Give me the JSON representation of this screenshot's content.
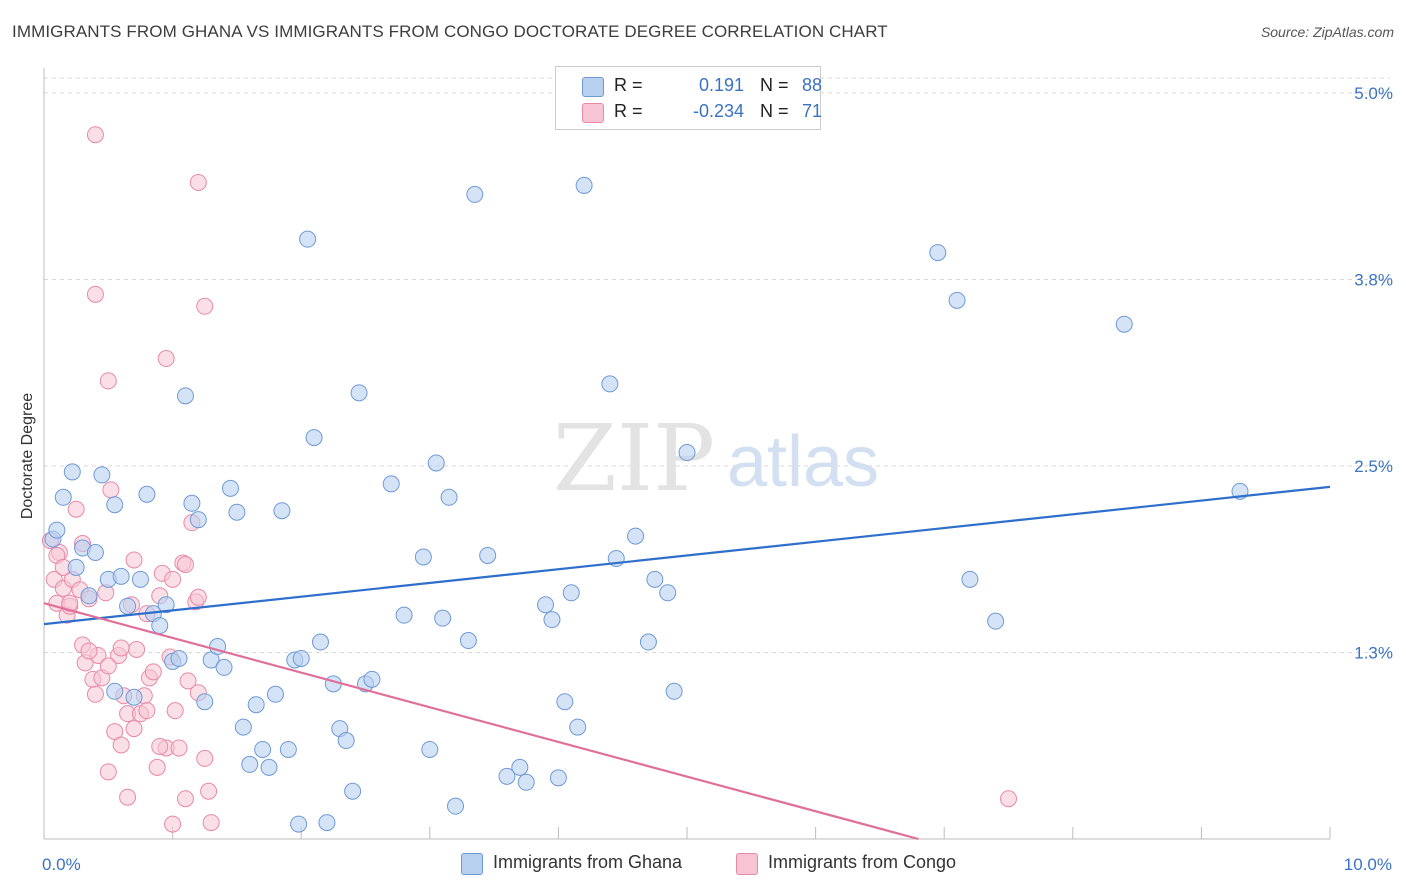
{
  "title": "IMMIGRANTS FROM GHANA VS IMMIGRANTS FROM CONGO DOCTORATE DEGREE CORRELATION CHART",
  "source": "Source: ZipAtlas.com",
  "watermark": {
    "zip": "ZIP",
    "atlas": "atlas"
  },
  "legend": {
    "ghana": {
      "r_label": "R =",
      "r_value": "0.191",
      "n_label": "N =",
      "n_value": "88"
    },
    "congo": {
      "r_label": "R =",
      "r_value": "-0.234",
      "n_label": "N =",
      "n_value": "71"
    }
  },
  "bottom_legend": {
    "ghana": "Immigrants from Ghana",
    "congo": "Immigrants from Congo"
  },
  "colors": {
    "ghana_fill": "#b8d0f0",
    "ghana_stroke": "#6f9ad6",
    "ghana_line": "#2f6fcc",
    "congo_fill": "#f7c4d4",
    "congo_stroke": "#e889a8",
    "congo_line": "#e0709a",
    "tick_text": "#3b73c4",
    "grid": "#d9d9d9"
  },
  "chart_data": {
    "type": "scatter",
    "title": "IMMIGRANTS FROM GHANA VS IMMIGRANTS FROM CONGO DOCTORATE DEGREE CORRELATION CHART",
    "xlabel": "",
    "ylabel": "Doctorate Degree",
    "xlim": [
      0,
      10
    ],
    "ylim": [
      0,
      5.1
    ],
    "x_tick_labels": [
      {
        "value": 0,
        "label": "0.0%"
      },
      {
        "value": 10,
        "label": "10.0%"
      }
    ],
    "y_tick_labels": [
      {
        "value": 1.25,
        "label": "1.3%"
      },
      {
        "value": 2.5,
        "label": "2.5%"
      },
      {
        "value": 3.75,
        "label": "3.8%"
      },
      {
        "value": 5.0,
        "label": "5.0%"
      }
    ],
    "series": [
      {
        "name": "Immigrants from Ghana",
        "trend": {
          "x0": 0,
          "y0": 1.44,
          "x1": 10,
          "y1": 2.36
        },
        "points": [
          [
            0.07,
            2.01
          ],
          [
            0.1,
            2.07
          ],
          [
            0.15,
            2.29
          ],
          [
            0.22,
            2.46
          ],
          [
            0.25,
            1.82
          ],
          [
            0.3,
            1.95
          ],
          [
            0.35,
            1.63
          ],
          [
            0.4,
            1.92
          ],
          [
            0.45,
            2.44
          ],
          [
            0.5,
            1.74
          ],
          [
            0.55,
            2.24
          ],
          [
            0.6,
            1.76
          ],
          [
            0.65,
            1.56
          ],
          [
            0.7,
            0.95
          ],
          [
            0.75,
            1.74
          ],
          [
            0.8,
            2.31
          ],
          [
            0.85,
            1.51
          ],
          [
            0.9,
            1.43
          ],
          [
            0.95,
            1.57
          ],
          [
            1.0,
            1.19
          ],
          [
            1.05,
            1.21
          ],
          [
            1.1,
            2.97
          ],
          [
            1.15,
            2.25
          ],
          [
            1.2,
            2.14
          ],
          [
            1.25,
            0.92
          ],
          [
            1.3,
            1.2
          ],
          [
            1.35,
            1.29
          ],
          [
            1.4,
            1.15
          ],
          [
            1.45,
            2.35
          ],
          [
            1.5,
            2.19
          ],
          [
            1.55,
            0.75
          ],
          [
            1.6,
            0.5
          ],
          [
            1.65,
            0.9
          ],
          [
            1.7,
            0.6
          ],
          [
            1.75,
            0.48
          ],
          [
            1.8,
            0.97
          ],
          [
            1.85,
            2.2
          ],
          [
            1.9,
            0.6
          ],
          [
            1.95,
            1.2
          ],
          [
            1.98,
            0.1
          ],
          [
            2.0,
            1.21
          ],
          [
            2.05,
            4.02
          ],
          [
            2.1,
            2.69
          ],
          [
            2.15,
            1.32
          ],
          [
            2.2,
            0.11
          ],
          [
            2.25,
            1.04
          ],
          [
            2.3,
            0.74
          ],
          [
            2.35,
            0.66
          ],
          [
            2.4,
            0.32
          ],
          [
            2.45,
            2.99
          ],
          [
            2.5,
            1.04
          ],
          [
            2.55,
            1.07
          ],
          [
            2.7,
            2.38
          ],
          [
            2.8,
            1.5
          ],
          [
            2.95,
            1.89
          ],
          [
            3.0,
            0.6
          ],
          [
            3.05,
            2.52
          ],
          [
            3.1,
            1.48
          ],
          [
            3.15,
            2.29
          ],
          [
            3.2,
            0.22
          ],
          [
            3.3,
            1.33
          ],
          [
            3.35,
            4.32
          ],
          [
            3.45,
            1.9
          ],
          [
            3.6,
            0.42
          ],
          [
            3.7,
            0.48
          ],
          [
            3.75,
            0.38
          ],
          [
            3.9,
            1.57
          ],
          [
            3.95,
            1.47
          ],
          [
            4.0,
            0.41
          ],
          [
            4.05,
            0.92
          ],
          [
            4.1,
            1.65
          ],
          [
            4.15,
            0.75
          ],
          [
            4.2,
            4.38
          ],
          [
            4.4,
            3.05
          ],
          [
            4.45,
            1.88
          ],
          [
            4.6,
            2.03
          ],
          [
            4.7,
            1.32
          ],
          [
            4.75,
            1.74
          ],
          [
            4.85,
            1.65
          ],
          [
            4.9,
            0.99
          ],
          [
            5.0,
            2.59
          ],
          [
            6.95,
            3.93
          ],
          [
            7.1,
            3.61
          ],
          [
            7.2,
            1.74
          ],
          [
            7.4,
            1.46
          ],
          [
            8.4,
            3.45
          ],
          [
            9.3,
            2.33
          ],
          [
            0.55,
            0.99
          ]
        ]
      },
      {
        "name": "Immigrants from Congo",
        "trend": {
          "x0": 0,
          "y0": 1.58,
          "x1": 6.8,
          "y1": 0.0
        },
        "points": [
          [
            0.05,
            2.0
          ],
          [
            0.08,
            1.74
          ],
          [
            0.1,
            1.58
          ],
          [
            0.12,
            1.92
          ],
          [
            0.15,
            1.68
          ],
          [
            0.18,
            1.5
          ],
          [
            0.2,
            1.56
          ],
          [
            0.22,
            1.74
          ],
          [
            0.25,
            2.21
          ],
          [
            0.28,
            1.67
          ],
          [
            0.3,
            1.3
          ],
          [
            0.32,
            1.18
          ],
          [
            0.35,
            1.61
          ],
          [
            0.38,
            1.07
          ],
          [
            0.4,
            0.97
          ],
          [
            0.42,
            1.23
          ],
          [
            0.45,
            1.08
          ],
          [
            0.48,
            1.65
          ],
          [
            0.5,
            0.45
          ],
          [
            0.52,
            2.34
          ],
          [
            0.55,
            0.72
          ],
          [
            0.58,
            1.23
          ],
          [
            0.6,
            0.63
          ],
          [
            0.62,
            0.96
          ],
          [
            0.65,
            0.84
          ],
          [
            0.68,
            1.57
          ],
          [
            0.7,
            0.74
          ],
          [
            0.72,
            1.27
          ],
          [
            0.75,
            0.84
          ],
          [
            0.78,
            0.96
          ],
          [
            0.8,
            0.86
          ],
          [
            0.82,
            1.08
          ],
          [
            0.85,
            1.12
          ],
          [
            0.88,
            0.48
          ],
          [
            0.9,
            1.63
          ],
          [
            0.92,
            1.78
          ],
          [
            0.95,
            0.61
          ],
          [
            0.98,
            1.22
          ],
          [
            1.0,
            0.1
          ],
          [
            1.02,
            0.86
          ],
          [
            1.05,
            0.61
          ],
          [
            1.08,
            1.85
          ],
          [
            1.1,
            0.27
          ],
          [
            1.12,
            1.06
          ],
          [
            1.15,
            2.12
          ],
          [
            1.18,
            1.59
          ],
          [
            1.2,
            0.98
          ],
          [
            1.25,
            0.54
          ],
          [
            1.28,
            0.32
          ],
          [
            1.3,
            0.11
          ],
          [
            0.4,
            4.72
          ],
          [
            1.2,
            4.4
          ],
          [
            0.4,
            3.65
          ],
          [
            1.25,
            3.57
          ],
          [
            0.95,
            3.22
          ],
          [
            0.5,
            3.07
          ],
          [
            1.0,
            1.74
          ],
          [
            1.1,
            1.84
          ],
          [
            1.2,
            1.62
          ],
          [
            0.2,
            1.58
          ],
          [
            0.1,
            1.9
          ],
          [
            0.3,
            1.98
          ],
          [
            0.15,
            1.82
          ],
          [
            0.7,
            1.87
          ],
          [
            0.35,
            1.26
          ],
          [
            0.5,
            1.16
          ],
          [
            0.6,
            1.28
          ],
          [
            0.8,
            1.51
          ],
          [
            0.9,
            0.62
          ],
          [
            0.65,
            0.28
          ],
          [
            7.5,
            0.27
          ]
        ]
      }
    ]
  }
}
